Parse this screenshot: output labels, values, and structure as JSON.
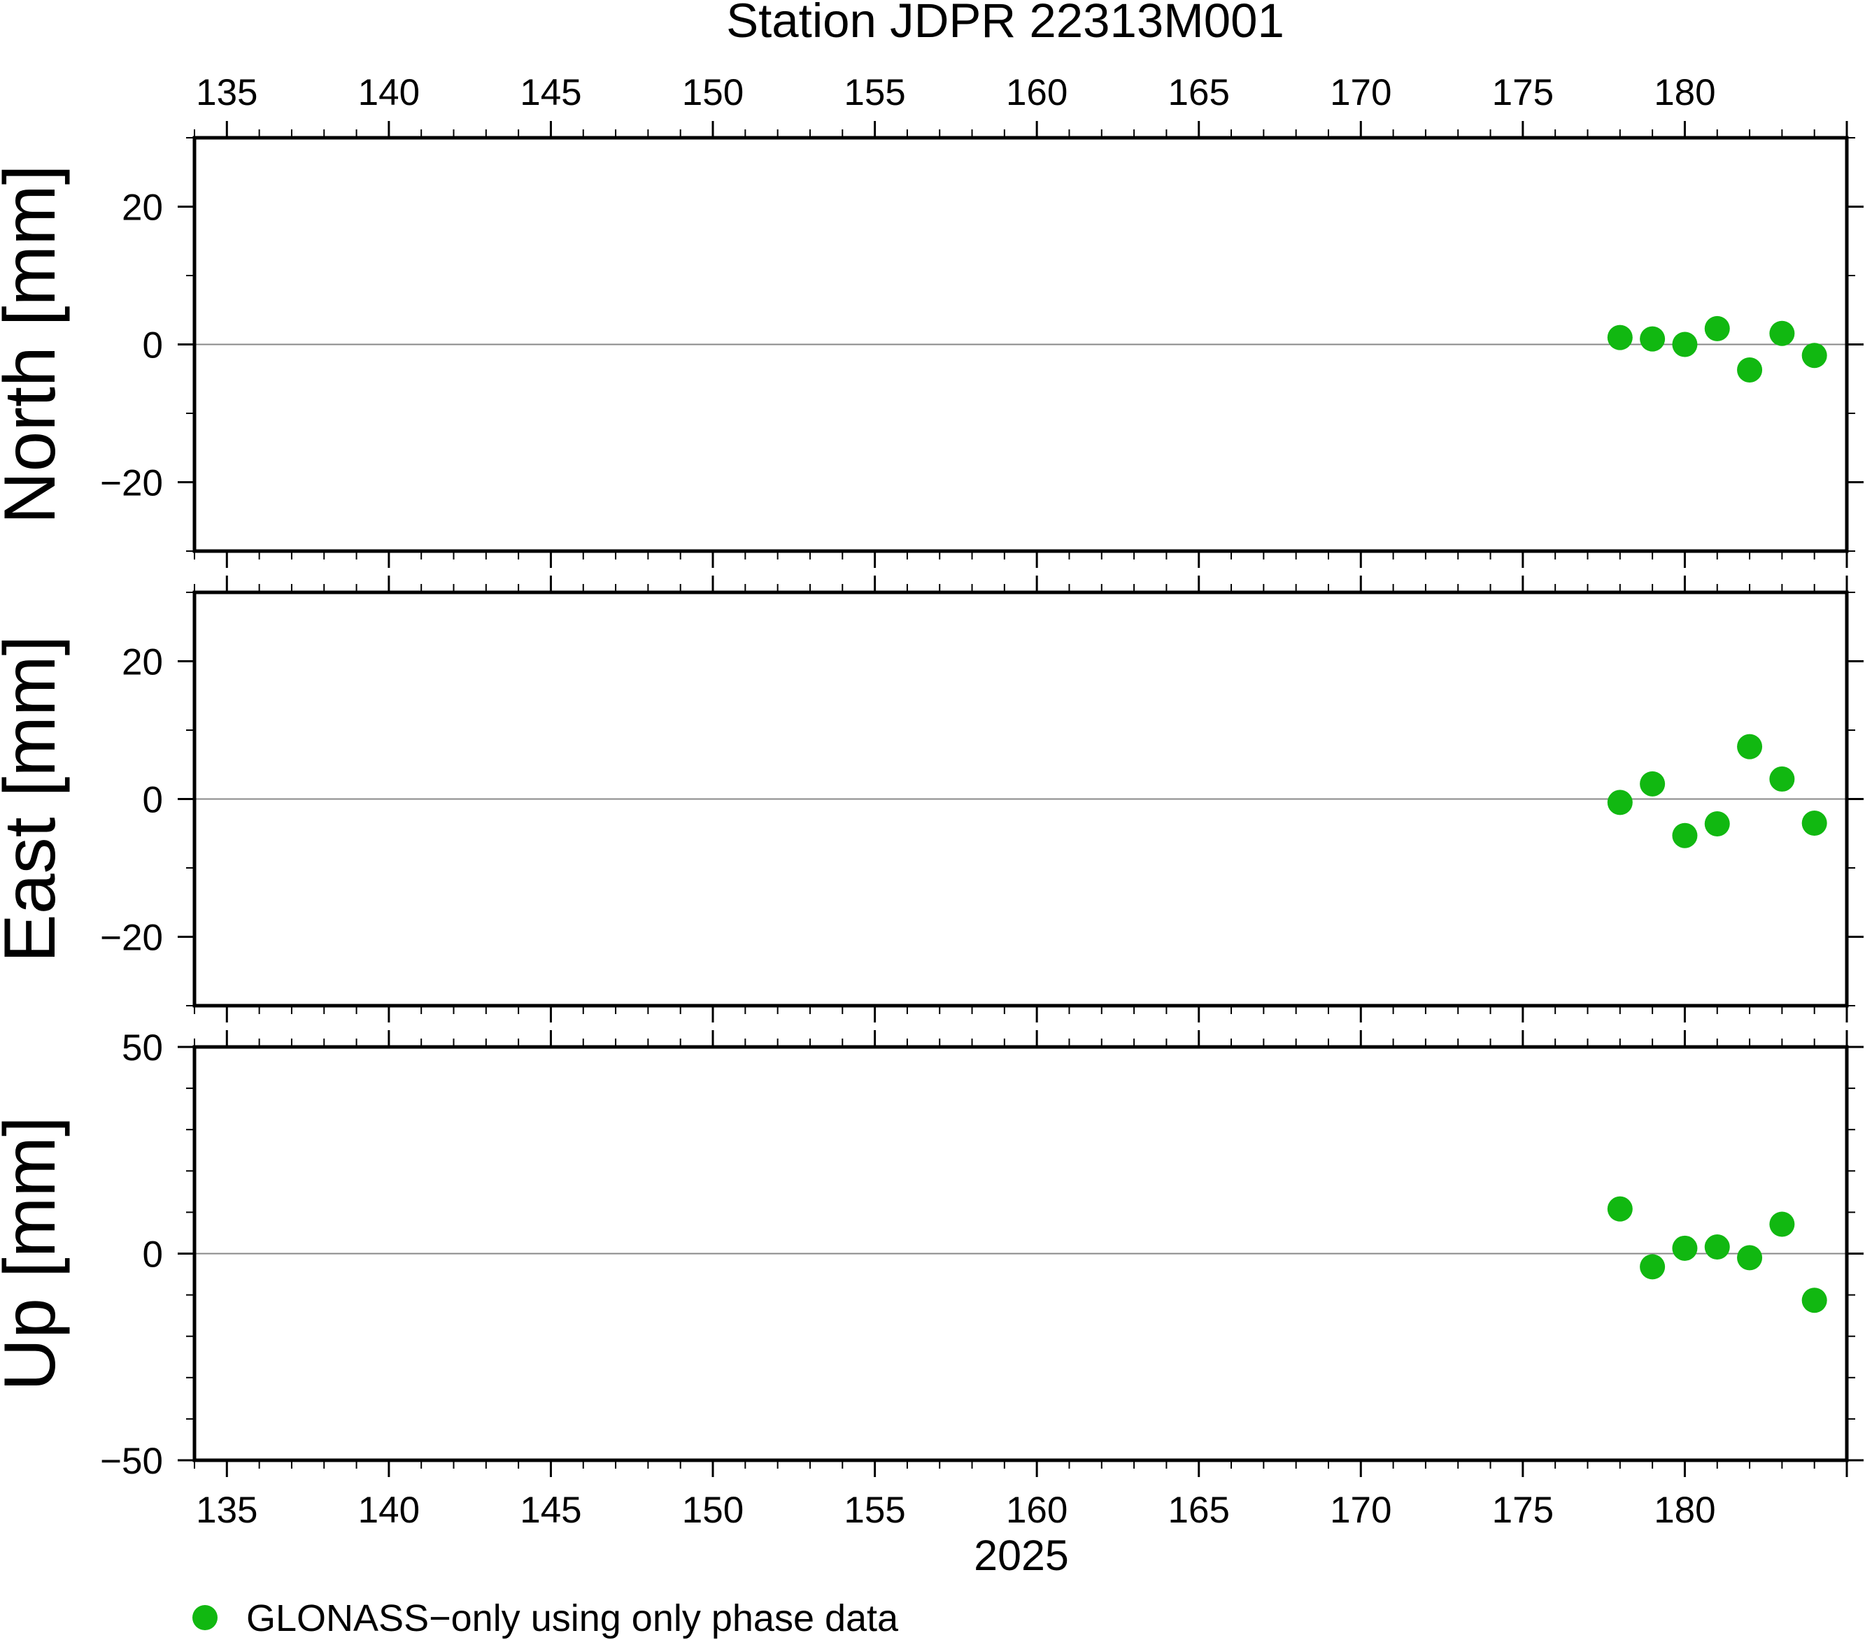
{
  "title": "Station JDPR 22313M001",
  "xlabel": "2025",
  "legend": {
    "label": "GLONASS−only using only phase data",
    "position": "bottom-left"
  },
  "colors": {
    "series": "#11b811",
    "frame": "#000000",
    "zero_line": "#888888"
  },
  "x_ticks": [
    135,
    140,
    145,
    150,
    155,
    160,
    165,
    170,
    175,
    180
  ],
  "chart_data": [
    {
      "type": "scatter",
      "panel": "north",
      "ylabel": "North [mm]",
      "xlim": [
        134,
        185
      ],
      "ylim": [
        -30,
        30
      ],
      "yticks": [
        20,
        0,
        -20
      ],
      "ytick_labels": [
        "20",
        "0",
        "−20"
      ],
      "series": [
        {
          "name": "GLONASS−only using only phase data",
          "x": [
            178,
            179,
            180,
            181,
            182,
            183,
            184
          ],
          "y": [
            1.0,
            0.8,
            0.0,
            2.3,
            -3.7,
            1.6,
            -1.6
          ]
        }
      ]
    },
    {
      "type": "scatter",
      "panel": "east",
      "ylabel": "East [mm]",
      "xlim": [
        134,
        185
      ],
      "ylim": [
        -30,
        30
      ],
      "yticks": [
        20,
        0,
        -20
      ],
      "ytick_labels": [
        "20",
        "0",
        "−20"
      ],
      "series": [
        {
          "name": "GLONASS−only using only phase data",
          "x": [
            178,
            179,
            180,
            181,
            182,
            183,
            184
          ],
          "y": [
            -0.5,
            2.2,
            -5.3,
            -3.6,
            7.6,
            2.9,
            -3.5
          ]
        }
      ]
    },
    {
      "type": "scatter",
      "panel": "up",
      "ylabel": "Up [mm]",
      "xlim": [
        134,
        185
      ],
      "ylim": [
        -50,
        50
      ],
      "yticks": [
        50,
        0,
        -50
      ],
      "ytick_labels": [
        "50",
        "0",
        "−50"
      ],
      "series": [
        {
          "name": "GLONASS−only using only phase data",
          "x": [
            178,
            179,
            180,
            181,
            182,
            183,
            184
          ],
          "y": [
            10.8,
            -3.2,
            1.3,
            1.6,
            -1.0,
            7.1,
            -11.3
          ]
        }
      ]
    }
  ]
}
